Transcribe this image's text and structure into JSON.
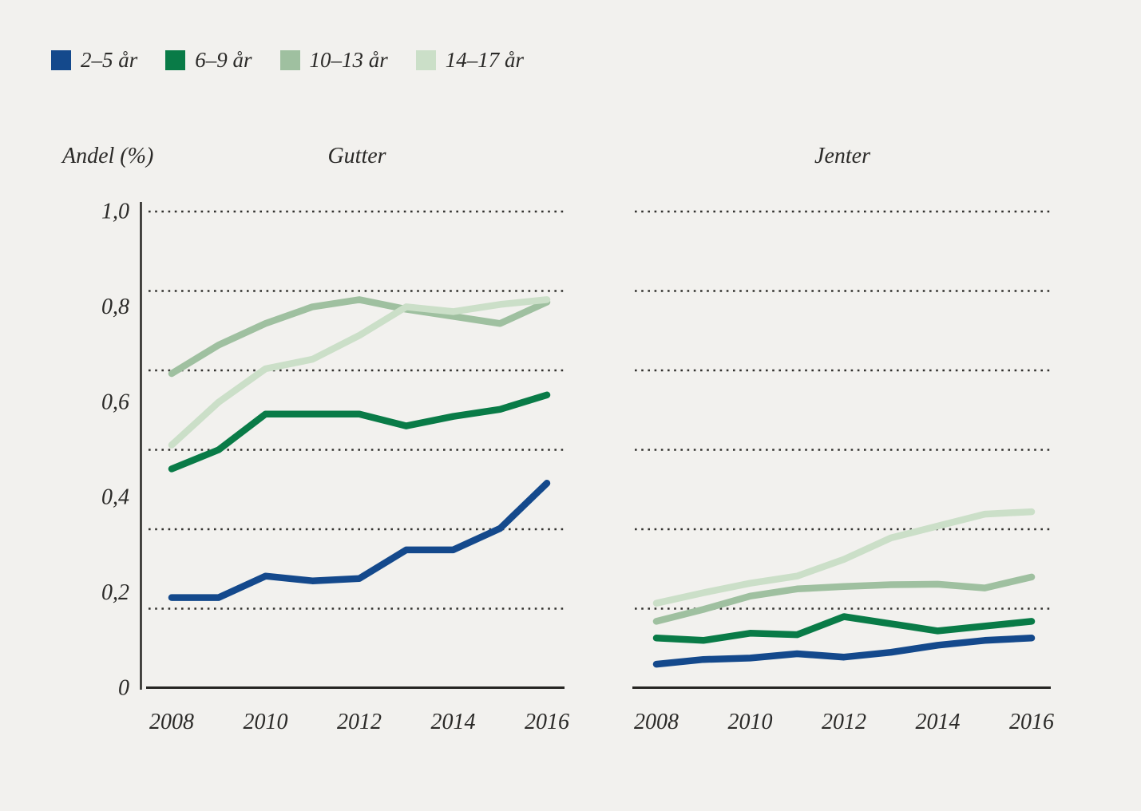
{
  "figure": {
    "background": "#f2f1ee"
  },
  "chart_data": {
    "type": "line",
    "title": "",
    "ylabel": "Andel (%)",
    "xlabel": "",
    "x": [
      2008,
      2009,
      2010,
      2011,
      2012,
      2013,
      2014,
      2015,
      2016
    ],
    "x_ticks": [
      2008,
      2010,
      2012,
      2014,
      2016
    ],
    "x_tick_labels": [
      "2008",
      "2010",
      "2012",
      "2014",
      "2016"
    ],
    "ylim": [
      0,
      1.0
    ],
    "y_ticks": [
      1.0,
      0.8,
      0.6,
      0.4,
      0.2,
      0
    ],
    "y_tick_labels": [
      "1,0",
      "0,8",
      "0,6",
      "0,4",
      "0,2",
      "0"
    ],
    "gridline_values": [
      0.1667,
      0.3333,
      0.5,
      0.6667,
      0.8333,
      1.0
    ],
    "grid_style": "dotted",
    "legend_position": "top-left",
    "colors": {
      "background": "#f2f1ee",
      "text": "#2b2a28",
      "axis": "#262522",
      "grid": "#33322f"
    },
    "legend": [
      {
        "label": "2–5 år",
        "color": "#14498c"
      },
      {
        "label": "6–9 år",
        "color": "#097b47"
      },
      {
        "label": "10–13 år",
        "color": "#9fc0a0"
      },
      {
        "label": "14–17 år",
        "color": "#cbdfc8"
      }
    ],
    "panels": [
      {
        "title": "Gutter",
        "series": [
          {
            "name": "2–5 år",
            "values": [
              0.19,
              0.19,
              0.235,
              0.225,
              0.23,
              0.29,
              0.29,
              0.335,
              0.43
            ]
          },
          {
            "name": "6–9 år",
            "values": [
              0.46,
              0.5,
              0.575,
              0.575,
              0.575,
              0.55,
              0.57,
              0.585,
              0.615
            ]
          },
          {
            "name": "10–13 år",
            "values": [
              0.66,
              0.72,
              0.765,
              0.8,
              0.815,
              0.795,
              0.78,
              0.765,
              0.81
            ]
          },
          {
            "name": "14–17 år",
            "values": [
              0.51,
              0.6,
              0.67,
              0.69,
              0.74,
              0.8,
              0.79,
              0.805,
              0.815
            ]
          }
        ]
      },
      {
        "title": "Jenter",
        "series": [
          {
            "name": "2–5 år",
            "values": [
              0.05,
              0.06,
              0.063,
              0.072,
              0.065,
              0.075,
              0.09,
              0.1,
              0.105
            ]
          },
          {
            "name": "6–9 år",
            "values": [
              0.105,
              0.1,
              0.115,
              0.112,
              0.15,
              0.135,
              0.12,
              0.13,
              0.14
            ]
          },
          {
            "name": "10–13 år",
            "values": [
              0.14,
              0.165,
              0.193,
              0.208,
              0.213,
              0.217,
              0.218,
              0.21,
              0.233
            ]
          },
          {
            "name": "14–17 år",
            "values": [
              0.178,
              0.2,
              0.22,
              0.235,
              0.27,
              0.315,
              0.34,
              0.365,
              0.37
            ]
          }
        ]
      }
    ]
  }
}
